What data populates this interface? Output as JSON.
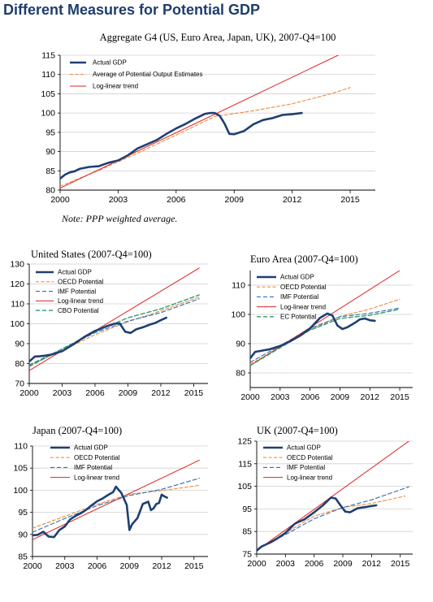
{
  "page": {
    "title": "Different Measures for Potential GDP",
    "note": "Note: PPP weighted average."
  },
  "colors": {
    "actual": "#1f3f73",
    "oecd": "#f08a3c",
    "imf": "#2f6fb6",
    "trend": "#e02020",
    "cbo": "#2e9e6a",
    "ec": "#2e9e6a",
    "average": "#f08a3c",
    "grid": "#cfcfcf",
    "title": "#1f3d6b"
  },
  "chart_data": [
    {
      "id": "g4",
      "type": "line",
      "title": "Aggregate G4 (US, Euro Area, Japan, UK), 2007-Q4=100",
      "xlim": [
        2000,
        2016.3
      ],
      "ylim": [
        80,
        115
      ],
      "xticks": [
        "2000",
        "2003",
        "2006",
        "2009",
        "2012",
        "2015"
      ],
      "yticks": [
        "80",
        "85",
        "90",
        "95",
        "100",
        "105",
        "110",
        "115"
      ],
      "legend": "top-left",
      "grid": true,
      "series": [
        {
          "name": "Actual GDP",
          "style": "actual",
          "x": [
            2000,
            2000.25,
            2000.5,
            2000.75,
            2001,
            2001.5,
            2002,
            2002.5,
            2003,
            2003.5,
            2004,
            2004.5,
            2005,
            2005.5,
            2006,
            2006.5,
            2007,
            2007.5,
            2007.75,
            2008,
            2008.25,
            2008.5,
            2008.75,
            2009,
            2009.25,
            2009.5,
            2010,
            2010.5,
            2011,
            2011.5,
            2012,
            2012.5
          ],
          "y": [
            83,
            84,
            84.6,
            84.9,
            85.5,
            86,
            86.2,
            87.1,
            87.7,
            89,
            90.8,
            91.9,
            93,
            94.6,
            96,
            97.2,
            98.6,
            99.8,
            100,
            100,
            99.3,
            97.3,
            94.6,
            94.5,
            94.9,
            95.3,
            97.1,
            98.2,
            98.7,
            99.5,
            99.7,
            100
          ]
        },
        {
          "name": "Average of Potential Output Estimates",
          "style": "average",
          "x": [
            2000,
            2002,
            2004,
            2006,
            2008,
            2010,
            2012,
            2014,
            2015
          ],
          "y": [
            81,
            85.1,
            89.6,
            94.3,
            99.1,
            100.6,
            102.4,
            105,
            106.6
          ]
        },
        {
          "name": "Log-linear trend",
          "style": "trend",
          "x": [
            2000,
            2015
          ],
          "y": [
            80.5,
            116.5
          ]
        }
      ]
    },
    {
      "id": "us",
      "type": "line",
      "title": "United States (2007-Q4=100)",
      "xlim": [
        2000,
        2016.3
      ],
      "ylim": [
        70,
        130
      ],
      "xticks": [
        "2000",
        "2003",
        "2006",
        "2009",
        "2012",
        "2015"
      ],
      "yticks": [
        "70",
        "80",
        "90",
        "100",
        "110",
        "120",
        "130"
      ],
      "legend": "top-left",
      "grid": true,
      "series": [
        {
          "name": "Actual GDP",
          "style": "actual",
          "x": [
            2000,
            2000.5,
            2001,
            2001.5,
            2002,
            2003,
            2004,
            2005,
            2006,
            2007,
            2007.75,
            2008.25,
            2008.75,
            2009.25,
            2009.75,
            2010.5,
            2011,
            2011.5,
            2012,
            2012.5
          ],
          "y": [
            81,
            83.5,
            83.7,
            84,
            84.5,
            86.2,
            89.6,
            93.3,
            96.4,
            98.6,
            100,
            100.2,
            96,
            95.4,
            97.2,
            98.5,
            99.6,
            100.4,
            101.8,
            103
          ]
        },
        {
          "name": "OECD Potential",
          "style": "oecd",
          "x": [
            2000,
            2003,
            2006,
            2009,
            2012,
            2015.5
          ],
          "y": [
            79,
            86.6,
            94.5,
            101,
            106.5,
            113.4
          ]
        },
        {
          "name": "IMF Potential",
          "style": "imf",
          "x": [
            2000,
            2003,
            2006,
            2009,
            2012,
            2015.5
          ],
          "y": [
            79.3,
            87.3,
            95.5,
            101.3,
            105.6,
            112.5
          ]
        },
        {
          "name": "Log-linear trend",
          "style": "trend",
          "x": [
            2000,
            2015.5
          ],
          "y": [
            76.5,
            128
          ]
        },
        {
          "name": "CBO Potential",
          "style": "cbo",
          "x": [
            2000,
            2003,
            2006,
            2009,
            2012,
            2015.5
          ],
          "y": [
            78.5,
            87.4,
            96,
            103,
            107.5,
            114.5
          ]
        }
      ]
    },
    {
      "id": "ea",
      "type": "line",
      "title": "Euro Area (2007-Q4=100)",
      "xlim": [
        2000,
        2016.3
      ],
      "ylim": [
        75,
        115
      ],
      "xticks": [
        "2000",
        "2003",
        "2006",
        "2009",
        "2012",
        "2015"
      ],
      "yticks": [
        "80",
        "90",
        "100",
        "110"
      ],
      "legend": "top-left",
      "grid": true,
      "series": [
        {
          "name": "Actual GDP",
          "style": "actual",
          "x": [
            2000,
            2000.5,
            2001,
            2001.5,
            2002,
            2003,
            2004,
            2005,
            2006,
            2007,
            2007.75,
            2008.25,
            2008.75,
            2009.25,
            2009.75,
            2010.5,
            2011,
            2011.5,
            2012,
            2012.5
          ],
          "y": [
            85,
            87.2,
            87.5,
            87.8,
            88.1,
            89.2,
            90.8,
            92.7,
            95.2,
            98.8,
            100.3,
            99.6,
            96.2,
            95,
            95.6,
            97.1,
            98.3,
            98.6,
            98,
            97.8
          ]
        },
        {
          "name": "OECD Potential",
          "style": "oecd",
          "x": [
            2000,
            2003,
            2006,
            2009,
            2012,
            2015
          ],
          "y": [
            83,
            88.7,
            94.7,
            99.3,
            101.8,
            105.2
          ]
        },
        {
          "name": "IMF Potential",
          "style": "imf",
          "x": [
            2000,
            2003,
            2006,
            2009,
            2012,
            2015
          ],
          "y": [
            83.6,
            89.3,
            95.2,
            99.2,
            100.4,
            102.2
          ]
        },
        {
          "name": "Log-linear trend",
          "style": "trend",
          "x": [
            2000,
            2015
          ],
          "y": [
            82.5,
            115
          ]
        },
        {
          "name": "EC Potential",
          "style": "ec",
          "x": [
            2000,
            2003,
            2006,
            2009,
            2012,
            2015
          ],
          "y": [
            82.5,
            88.6,
            94.6,
            98.6,
            99.7,
            101.8
          ]
        }
      ]
    },
    {
      "id": "jp",
      "type": "line",
      "title": "Japan (2007-Q4=100)",
      "xlim": [
        2000,
        2016.3
      ],
      "ylim": [
        85,
        110
      ],
      "xticks": [
        "2000",
        "2003",
        "2006",
        "2009",
        "2012",
        "2015"
      ],
      "yticks": [
        "85",
        "90",
        "95",
        "100",
        "105",
        "110"
      ],
      "legend": "top-left",
      "grid": true,
      "series": [
        {
          "name": "Actual GDP",
          "style": "actual",
          "x": [
            2000,
            2000.5,
            2001,
            2001.5,
            2002,
            2002.5,
            2003,
            2003.5,
            2004,
            2004.5,
            2005,
            2005.5,
            2006,
            2006.5,
            2007,
            2007.5,
            2007.75,
            2008.25,
            2008.75,
            2009,
            2009.25,
            2009.75,
            2010.25,
            2010.75,
            2011,
            2011.25,
            2011.5,
            2011.75,
            2012,
            2012.25,
            2012.5
          ],
          "y": [
            89.8,
            89.9,
            90.6,
            89.5,
            89.4,
            91,
            91.8,
            93.4,
            94.2,
            94.8,
            95.6,
            96.6,
            97.5,
            98.1,
            98.9,
            99.6,
            100.8,
            99.4,
            96.7,
            91,
            92.3,
            93.7,
            96.9,
            97.4,
            95.5,
            95.9,
            96.9,
            97.1,
            99,
            98.6,
            98.3
          ]
        },
        {
          "name": "OECD Potential",
          "style": "oecd",
          "x": [
            2000,
            2003,
            2006,
            2009,
            2012,
            2015.5
          ],
          "y": [
            91.4,
            94.1,
            96.8,
            99.1,
            99.9,
            101.1
          ]
        },
        {
          "name": "IMF Potential",
          "style": "imf",
          "x": [
            2000,
            2003,
            2006,
            2009,
            2012,
            2015.5
          ],
          "y": [
            90.5,
            93.6,
            96.5,
            98.8,
            100.2,
            102.7
          ]
        },
        {
          "name": "Log-linear trend",
          "style": "trend",
          "x": [
            2000,
            2015.5
          ],
          "y": [
            88.8,
            106.8
          ]
        }
      ]
    },
    {
      "id": "uk",
      "type": "line",
      "title": "UK (2007-Q4=100)",
      "xlim": [
        2000,
        2016.3
      ],
      "ylim": [
        75,
        125
      ],
      "xticks": [
        "2000",
        "2003",
        "2006",
        "2009",
        "2012",
        "2015"
      ],
      "yticks": [
        "75",
        "85",
        "95",
        "105",
        "115",
        "125"
      ],
      "legend": "top-left",
      "grid": true,
      "series": [
        {
          "name": "Actual GDP",
          "style": "actual",
          "x": [
            2000,
            2000.5,
            2001,
            2001.5,
            2002,
            2003,
            2004,
            2005,
            2006,
            2007,
            2007.75,
            2008.25,
            2008.75,
            2009.25,
            2009.75,
            2010.5,
            2011,
            2011.5,
            2012,
            2012.5
          ],
          "y": [
            76.5,
            78.3,
            79.3,
            80.3,
            81.5,
            84.3,
            88.5,
            90.4,
            93.5,
            96.9,
            100,
            99.6,
            96.6,
            93.8,
            93.5,
            95.2,
            95.6,
            95.9,
            96.3,
            96.6
          ]
        },
        {
          "name": "OECD Potential",
          "style": "oecd",
          "x": [
            2000,
            2003,
            2006,
            2009,
            2012,
            2015.5
          ],
          "y": [
            77,
            84.3,
            91.8,
            95.6,
            97.4,
            100.7
          ]
        },
        {
          "name": "IMF Potential",
          "style": "imf",
          "x": [
            2000,
            2003,
            2006,
            2009,
            2012,
            2015.9
          ],
          "y": [
            77.2,
            83.6,
            90.6,
            95.6,
            99,
            104.8
          ]
        },
        {
          "name": "Log-linear trend",
          "style": "trend",
          "x": [
            2000,
            2015.9
          ],
          "y": [
            76.5,
            125
          ]
        }
      ]
    }
  ]
}
